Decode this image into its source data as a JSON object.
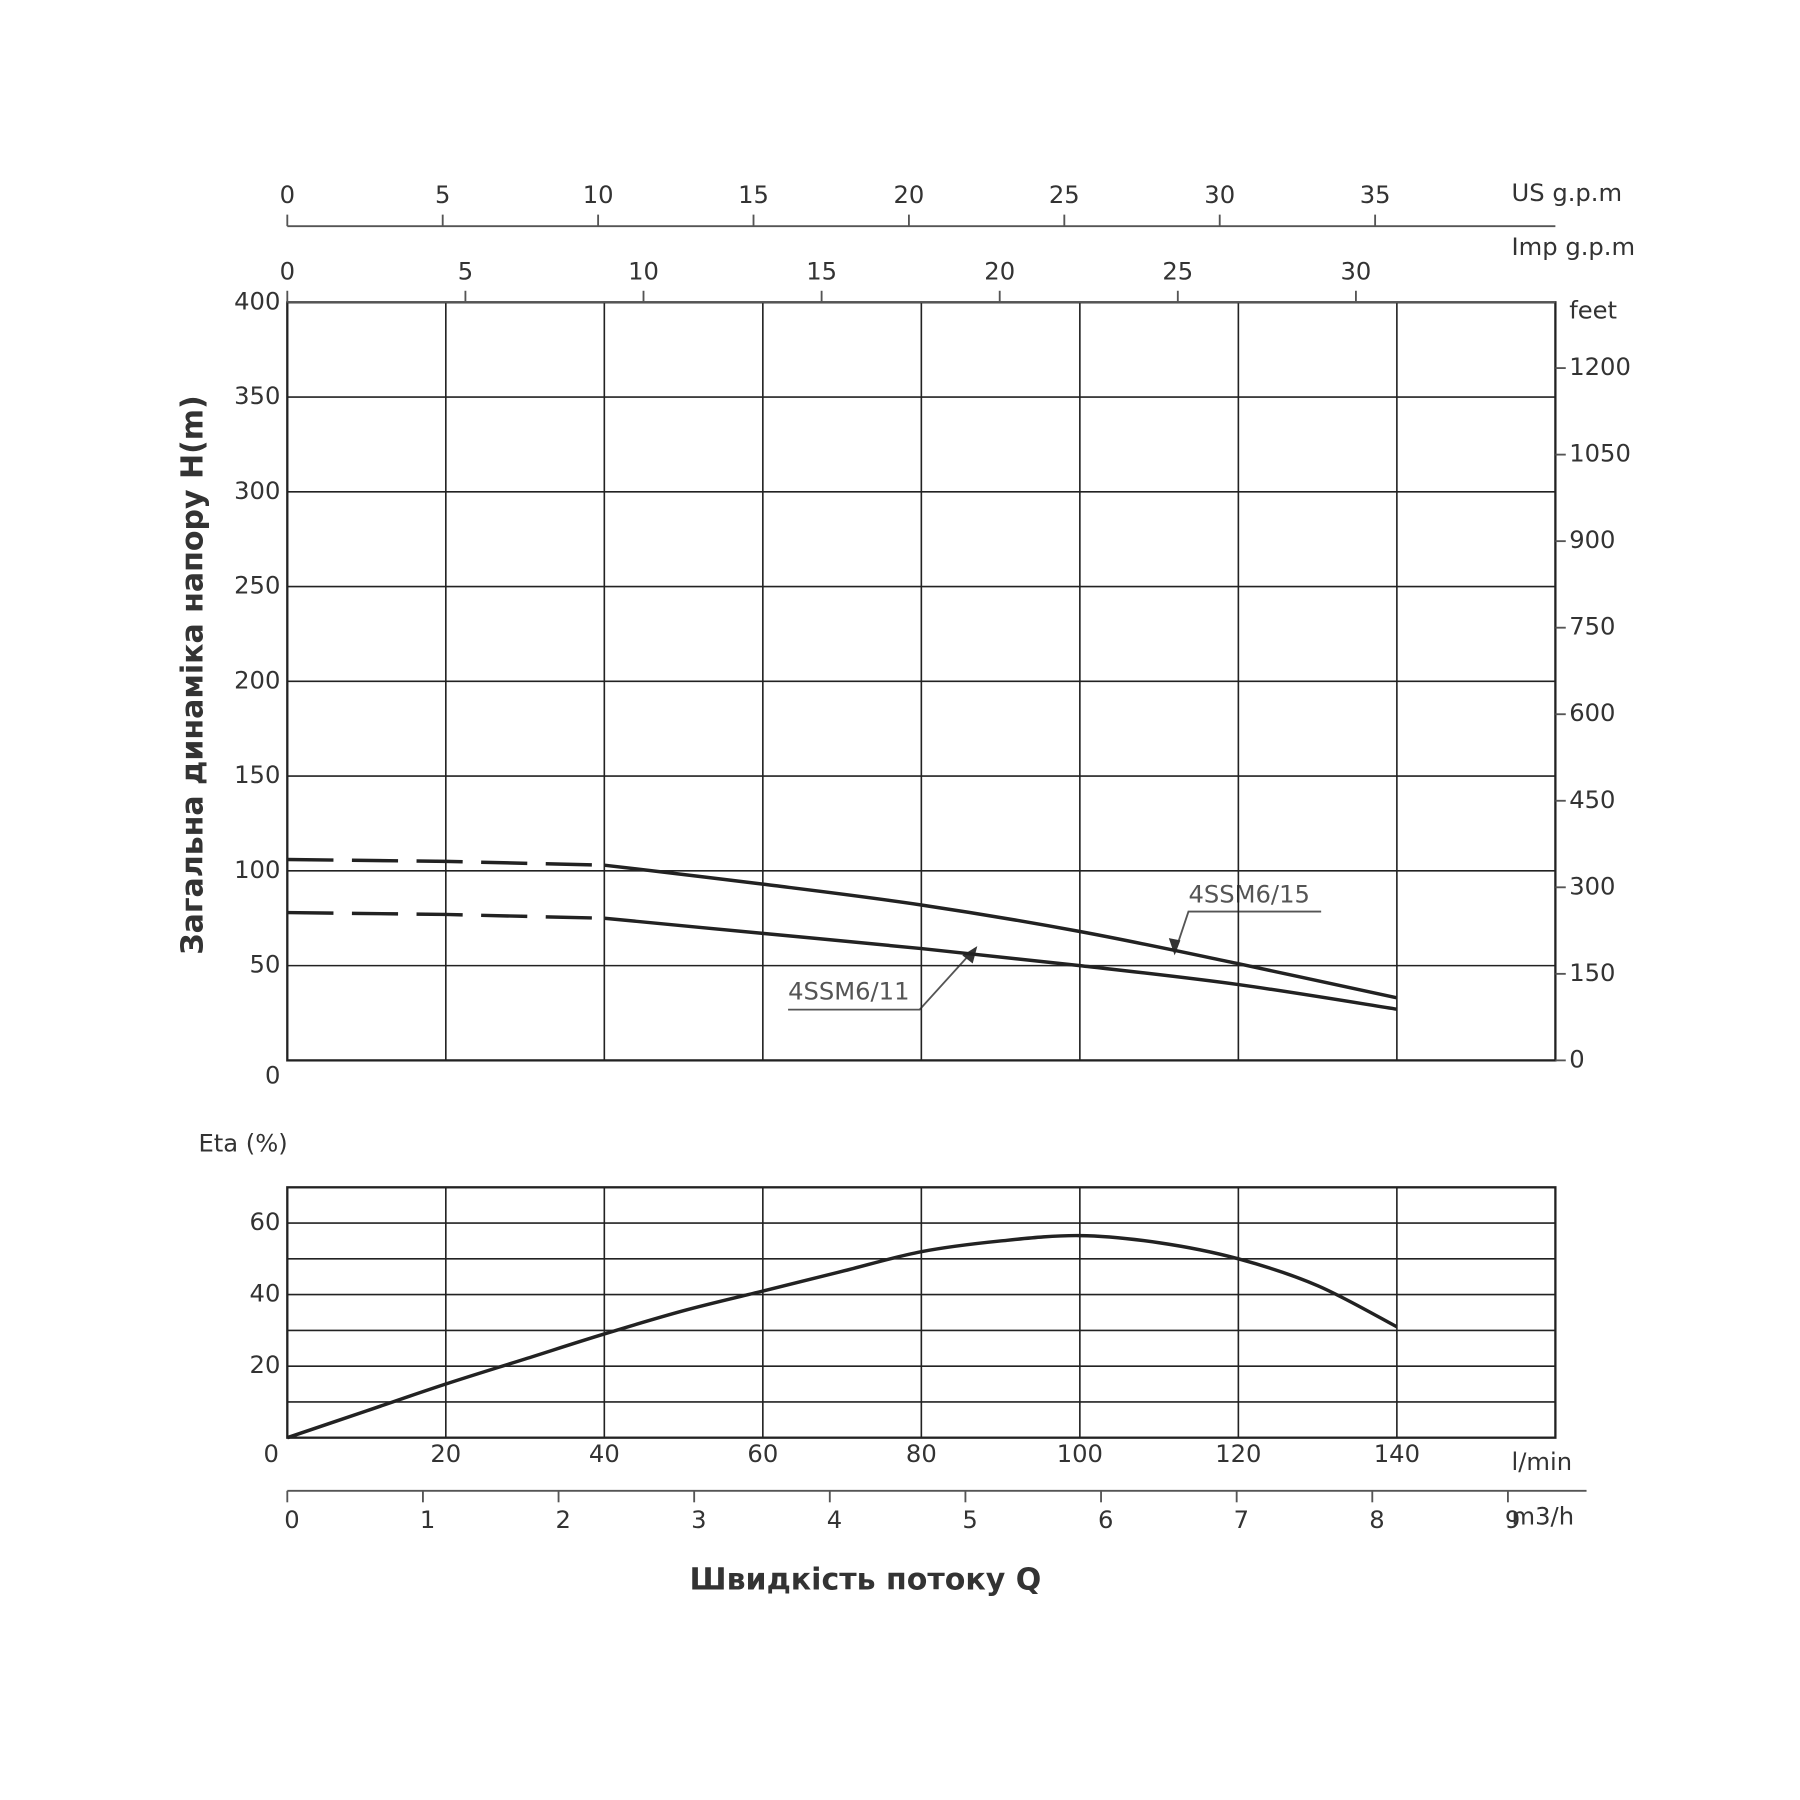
{
  "chart_data": [
    {
      "type": "line",
      "y_label": "Загальна динаміка напору H(m)",
      "ylim": [
        0,
        400
      ],
      "yticks": [
        0,
        50,
        100,
        150,
        200,
        250,
        300,
        350,
        400
      ],
      "y2_label": "feet",
      "y2lim": [
        0,
        1314
      ],
      "y2ticks": [
        0,
        150,
        300,
        450,
        600,
        750,
        900,
        1050,
        1200
      ],
      "xlim": [
        0,
        160
      ],
      "x_grid": [
        20,
        40,
        60,
        80,
        100,
        120,
        140
      ],
      "grid": true,
      "x2_axes": [
        {
          "label": "US g.p.m",
          "lim": [
            0,
            40.8
          ],
          "ticks": [
            0,
            5,
            10,
            15,
            20,
            25,
            30,
            35
          ]
        },
        {
          "label": "Imp g.p.m",
          "lim": [
            0,
            35.6
          ],
          "ticks": [
            0,
            5,
            10,
            15,
            20,
            25,
            30
          ]
        }
      ],
      "x": [
        0,
        20,
        40,
        60,
        80,
        100,
        120,
        140
      ],
      "series": [
        {
          "name": "4SSM6/15",
          "color": "#222222",
          "values": [
            106,
            105,
            103,
            93,
            82,
            68,
            51,
            33
          ],
          "line_style": [
            "dashed",
            "dashed",
            "solid",
            "solid",
            "solid",
            "solid",
            "solid",
            "solid"
          ]
        },
        {
          "name": "4SSM6/11",
          "color": "#222222",
          "values": [
            78,
            77,
            75,
            67,
            59,
            50,
            40,
            27
          ],
          "line_style": [
            "dashed",
            "dashed",
            "solid",
            "solid",
            "solid",
            "solid",
            "solid",
            "solid"
          ]
        }
      ]
    },
    {
      "type": "line",
      "y_label": "Eta (%)",
      "ylim": [
        0,
        70
      ],
      "yticks": [
        20,
        40,
        60
      ],
      "minor_yticks": [
        10,
        30,
        50,
        70
      ],
      "xlim": [
        0,
        160
      ],
      "xticks": [
        0,
        20,
        40,
        60,
        80,
        100,
        120,
        140
      ],
      "x_label": "l/min",
      "grid": true,
      "x2_axes": [
        {
          "label": "m3/h",
          "lim": [
            0,
            9.35
          ],
          "ticks": [
            0,
            1,
            2,
            3,
            4,
            5,
            6,
            7,
            8,
            9
          ]
        }
      ],
      "x_title": "Швидкість потоку Q",
      "x": [
        0,
        10,
        20,
        30,
        40,
        50,
        60,
        70,
        80,
        90,
        100,
        110,
        120,
        130,
        140
      ],
      "color": "#222222",
      "values": [
        0,
        7.5,
        15,
        22,
        29,
        35.5,
        41,
        46.5,
        52,
        55,
        56.5,
        54.5,
        50,
        42.5,
        31
      ]
    }
  ]
}
